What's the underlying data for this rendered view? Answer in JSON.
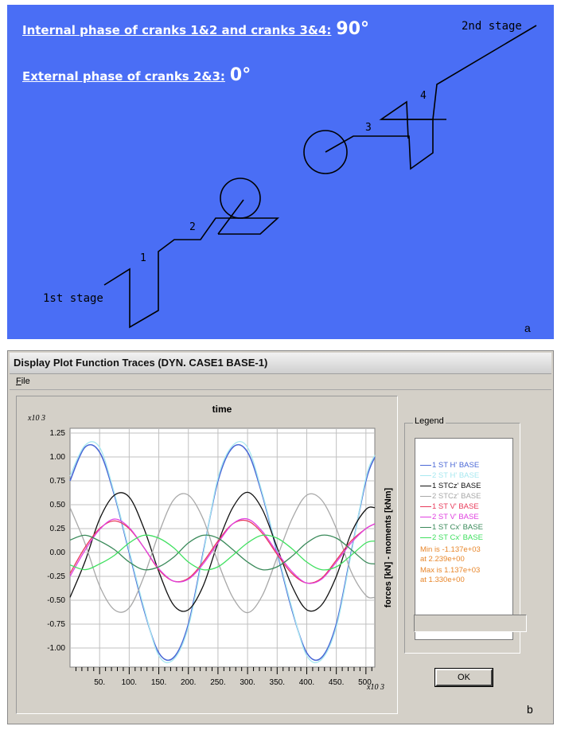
{
  "panel_a": {
    "phase_internal_label": "Internal phase of cranks 1&2 and cranks 3&4:",
    "phase_internal_value": "90°",
    "phase_external_label": "External phase of cranks 2&3:",
    "phase_external_value": "0°",
    "stage_1_label": "1st stage",
    "stage_2_label": "2nd stage",
    "crank_labels": [
      "1",
      "2",
      "3",
      "4"
    ],
    "letter": "a",
    "colors": {
      "background": "#4a6ef5",
      "text": "#ffffff",
      "drawing": "#000000"
    }
  },
  "panel_b": {
    "window_title": "Display Plot Function Traces  (DYN. CASE1 BASE-1)",
    "menu": {
      "file": "File"
    },
    "ok_label": "OK",
    "status_value": "",
    "letter": "b"
  },
  "chart_data": {
    "type": "line",
    "title": "time",
    "ylabel": "forces [kN] - moments [kNm]",
    "y_multiplier": "x10 3",
    "x_multiplier": "x10 3",
    "xlim": [
      0,
      515
    ],
    "ylim": [
      -1.2,
      1.3
    ],
    "x_ticks": [
      "50.",
      "100.",
      "150.",
      "200.",
      "250.",
      "300.",
      "350.",
      "400.",
      "450.",
      "500."
    ],
    "x_tick_values": [
      50,
      100,
      150,
      200,
      250,
      300,
      350,
      400,
      450,
      500
    ],
    "y_ticks": [
      "1.25",
      "1.00",
      "0.75",
      "0.50",
      "0.25",
      "0.00",
      "-0.25",
      "-0.50",
      "-0.75",
      "-1.00"
    ],
    "y_tick_values": [
      1.25,
      1.0,
      0.75,
      0.5,
      0.25,
      0.0,
      -0.25,
      -0.5,
      -0.75,
      -1.0
    ],
    "grid": true,
    "legend_title": "Legend",
    "legend_position": "right",
    "x": [
      0,
      25,
      50,
      75,
      100,
      125,
      150,
      175,
      200,
      225,
      250,
      275,
      300,
      325,
      350,
      375,
      400,
      425,
      450,
      475,
      500,
      515
    ],
    "series": [
      {
        "name": "1 ST H' BASE",
        "color": "#4a68d6",
        "values": [
          0.75,
          1.1,
          1.05,
          0.6,
          0.0,
          -0.6,
          -1.05,
          -1.1,
          -0.75,
          -0.0,
          0.75,
          1.1,
          1.05,
          0.6,
          0.0,
          -0.6,
          -1.05,
          -1.1,
          -0.75,
          -0.0,
          0.75,
          1.0
        ]
      },
      {
        "name": "2 ST H' BASE",
        "color": "#a8e8f0",
        "values": [
          0.8,
          1.12,
          1.1,
          0.62,
          0.02,
          -0.58,
          -1.08,
          -1.12,
          -0.78,
          -0.02,
          0.78,
          1.12,
          1.1,
          0.62,
          0.02,
          -0.58,
          -1.08,
          -1.12,
          -0.78,
          -0.02,
          0.78,
          1.02
        ]
      },
      {
        "name": "1 STCz' BASE",
        "color": "#111111",
        "values": [
          -0.47,
          -0.1,
          0.35,
          0.6,
          0.58,
          0.25,
          -0.2,
          -0.55,
          -0.6,
          -0.35,
          0.1,
          0.47,
          0.63,
          0.45,
          0.05,
          -0.35,
          -0.6,
          -0.55,
          -0.25,
          0.2,
          0.45,
          0.47
        ]
      },
      {
        "name": "2 STCz' BASE",
        "color": "#a8a8a8",
        "values": [
          0.47,
          0.1,
          -0.35,
          -0.6,
          -0.58,
          -0.25,
          0.2,
          0.55,
          0.6,
          0.35,
          -0.1,
          -0.47,
          -0.63,
          -0.45,
          -0.05,
          0.35,
          0.6,
          0.55,
          0.25,
          -0.2,
          -0.45,
          -0.47
        ]
      },
      {
        "name": "1 ST V' BASE",
        "color": "#e83a5a",
        "values": [
          -0.22,
          0.05,
          0.25,
          0.33,
          0.25,
          0.05,
          -0.18,
          -0.3,
          -0.27,
          -0.1,
          0.12,
          0.3,
          0.33,
          0.2,
          -0.02,
          -0.22,
          -0.32,
          -0.27,
          -0.08,
          0.12,
          0.25,
          0.3
        ]
      },
      {
        "name": "2 ST V' BASE",
        "color": "#e040e0",
        "values": [
          -0.25,
          0.02,
          0.24,
          0.35,
          0.26,
          0.05,
          -0.17,
          -0.3,
          -0.28,
          -0.12,
          0.1,
          0.3,
          0.35,
          0.22,
          0.0,
          -0.2,
          -0.32,
          -0.28,
          -0.1,
          0.1,
          0.25,
          0.3
        ]
      },
      {
        "name": "1 ST Cx' BASE",
        "color": "#3a8a5a",
        "values": [
          0.13,
          0.18,
          0.12,
          0.03,
          -0.1,
          -0.18,
          -0.15,
          -0.05,
          0.1,
          0.18,
          0.15,
          0.03,
          -0.1,
          -0.18,
          -0.15,
          -0.04,
          0.1,
          0.18,
          0.15,
          0.03,
          -0.1,
          -0.12
        ]
      },
      {
        "name": "2 ST Cx' BASE",
        "color": "#40e060",
        "values": [
          -0.13,
          -0.18,
          -0.12,
          -0.03,
          0.1,
          0.18,
          0.15,
          0.05,
          -0.1,
          -0.18,
          -0.15,
          -0.03,
          0.1,
          0.18,
          0.15,
          0.04,
          -0.1,
          -0.18,
          -0.15,
          -0.03,
          0.1,
          0.12
        ]
      }
    ],
    "min_note": [
      "Min is -1.137e+03",
      "at 2.239e+00"
    ],
    "max_note": [
      "Max is 1.137e+03",
      "at 1.330e+00"
    ]
  }
}
